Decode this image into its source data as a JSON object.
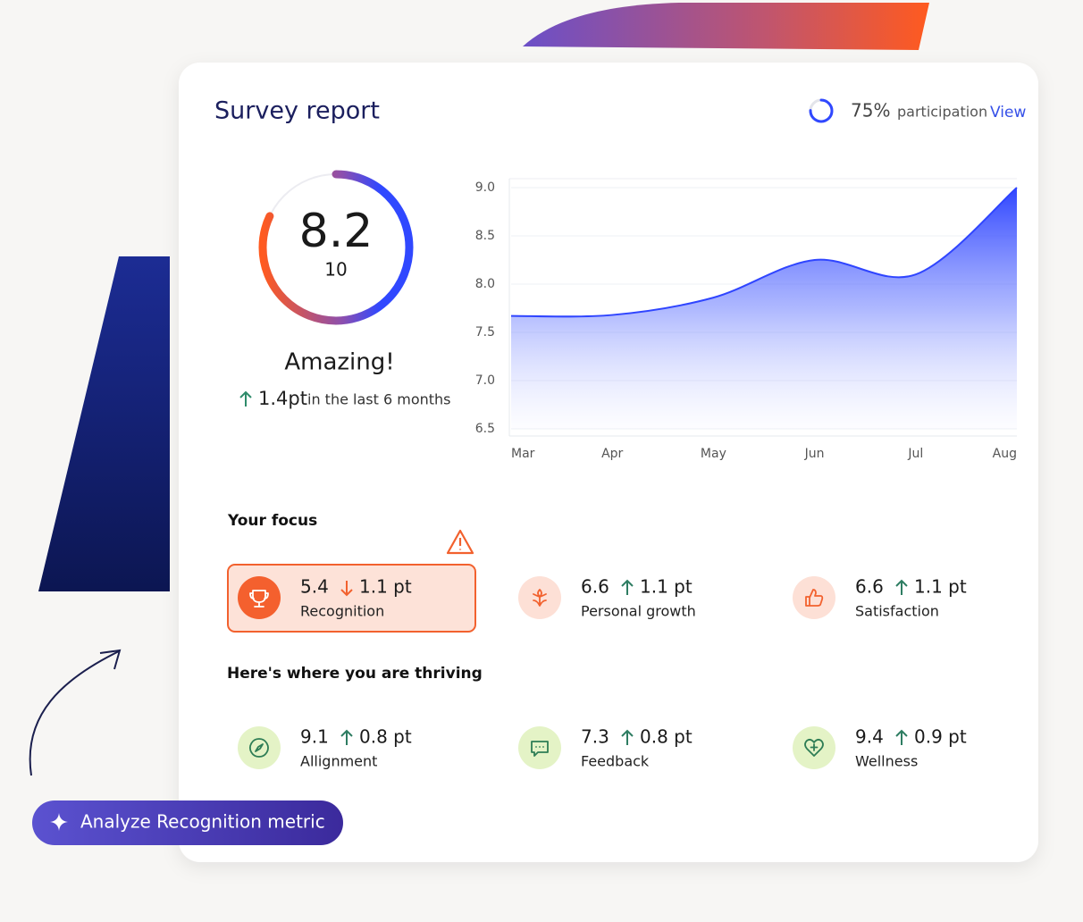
{
  "header": {
    "title": "Survey report"
  },
  "participation": {
    "value": 75,
    "label": "75%",
    "text": "participation",
    "link": "View"
  },
  "gauge": {
    "score": 8.2,
    "max": 10,
    "rating": "Amazing!",
    "change": "1.4pt",
    "period": "in the last 6 months"
  },
  "chart": {
    "type": "area",
    "color": "#2f45ff",
    "categories": [
      "Mar",
      "Apr",
      "May",
      "Jun",
      "Jul",
      "Aug"
    ],
    "values": [
      7.67,
      7.68,
      7.86,
      8.25,
      8.1,
      9.0
    ],
    "ylim": [
      6.5,
      9.0
    ],
    "yticks": [
      6.5,
      {
        "value": 7,
        "label": "7.0"
      },
      7.5,
      {
        "value": 8,
        "label": "8.0"
      },
      8.5,
      {
        "value": 9,
        "label": "9.0"
      }
    ],
    "grid": true
  },
  "focus": {
    "title": "Your focus",
    "items": [
      {
        "score": 5.4,
        "change": "1.1 pt",
        "direction": "down",
        "label": "Recognition"
      },
      {
        "score": 6.6,
        "change": "1.1 pt",
        "direction": "up",
        "label": "Personal growth"
      },
      {
        "score": 6.6,
        "change": "1.1 pt",
        "direction": "up",
        "label": "Satisfaction"
      }
    ]
  },
  "thriving": {
    "title": "Here's where you are thriving",
    "items": [
      {
        "score": 9.1,
        "change": "0.8 pt",
        "direction": "up",
        "label": "Allignment"
      },
      {
        "score": 7.3,
        "change": "0.8 pt",
        "direction": "up",
        "label": "Feedback"
      },
      {
        "score": 9.4,
        "change": "0.9 pt",
        "direction": "up",
        "label": "Wellness"
      }
    ]
  },
  "action": {
    "label": "Analyze Recognition metric"
  }
}
